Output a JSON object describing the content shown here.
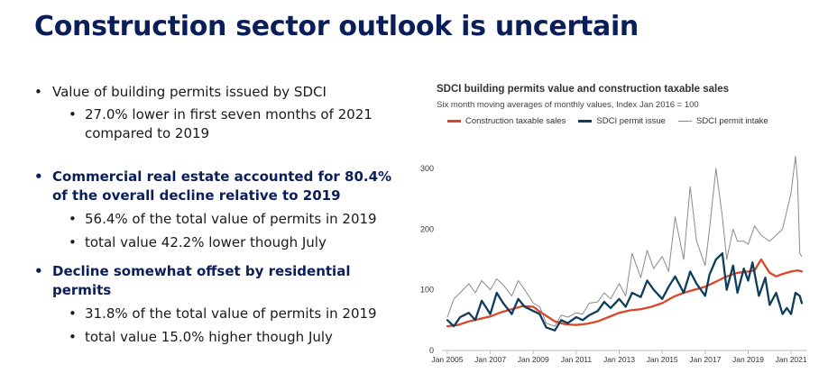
{
  "slide": {
    "title": "Construction sector outlook is uncertain",
    "bullets": [
      {
        "text": "Value of building permits issued by SDCI"
      },
      {
        "text": "27.0% lower in first seven months of 2021 compared to 2019"
      },
      {
        "text": "Commercial real estate accounted for 80.4% of the overall decline relative to 2019"
      },
      {
        "text": "56.4% of the total value of permits in 2019"
      },
      {
        "text": "total value 42.2% lower though July"
      },
      {
        "text": "Decline somewhat offset by residential permits"
      },
      {
        "text": "31.8% of the total value of permits in 2019"
      },
      {
        "text": "total value 15.0% higher though July"
      }
    ]
  },
  "colors": {
    "title": "#0a1e5a",
    "construction": "#d9472b",
    "permit_issue": "#0f3d5c",
    "permit_intake": "#8a8a8a",
    "axis": "#bbbbbb"
  },
  "chart_data": {
    "type": "line",
    "title": "SDCI building permits value and construction taxable sales",
    "subtitle": "Six month moving averages of monthly values, Index Jan 2016 = 100",
    "legend_position": "top",
    "xlim": [
      2004.75,
      2021.75
    ],
    "ylim": [
      0,
      340
    ],
    "yticks": [
      0,
      100,
      200,
      300
    ],
    "xticks": [
      {
        "x": 2005,
        "label": "Jan 2005"
      },
      {
        "x": 2007,
        "label": "Jan 2007"
      },
      {
        "x": 2009,
        "label": "Jan 2009"
      },
      {
        "x": 2011,
        "label": "Jan 2011"
      },
      {
        "x": 2013,
        "label": "Jan 2013"
      },
      {
        "x": 2015,
        "label": "Jan 2015"
      },
      {
        "x": 2017,
        "label": "Jan 2017"
      },
      {
        "x": 2019,
        "label": "Jan 2019"
      },
      {
        "x": 2021,
        "label": "Jan 2021"
      }
    ],
    "series": [
      {
        "name": "Construction taxable sales",
        "color": "#d9472b",
        "width": 2.3,
        "x": [
          2005.0,
          2005.5,
          2006.0,
          2006.5,
          2007.0,
          2007.5,
          2008.0,
          2008.5,
          2009.0,
          2009.3,
          2009.7,
          2010.0,
          2010.5,
          2011.0,
          2011.5,
          2012.0,
          2012.5,
          2013.0,
          2013.5,
          2014.0,
          2014.5,
          2015.0,
          2015.5,
          2016.0,
          2016.5,
          2017.0,
          2017.3,
          2017.6,
          2018.0,
          2018.5,
          2019.0,
          2019.3,
          2019.6,
          2020.0,
          2020.3,
          2020.6,
          2021.0,
          2021.3,
          2021.5
        ],
        "y": [
          40,
          42,
          48,
          52,
          56,
          63,
          68,
          73,
          72,
          64,
          55,
          48,
          43,
          42,
          44,
          48,
          55,
          62,
          66,
          68,
          72,
          78,
          88,
          95,
          100,
          105,
          110,
          115,
          122,
          128,
          130,
          132,
          150,
          128,
          122,
          126,
          130,
          132,
          130
        ]
      },
      {
        "name": "SDCI permit issue",
        "color": "#0f3d5c",
        "width": 2.3,
        "x": [
          2005.0,
          2005.3,
          2005.6,
          2006.0,
          2006.3,
          2006.6,
          2007.0,
          2007.3,
          2007.6,
          2008.0,
          2008.3,
          2008.6,
          2009.0,
          2009.3,
          2009.6,
          2010.0,
          2010.3,
          2010.6,
          2011.0,
          2011.3,
          2011.6,
          2012.0,
          2012.3,
          2012.6,
          2013.0,
          2013.3,
          2013.6,
          2014.0,
          2014.3,
          2014.6,
          2015.0,
          2015.3,
          2015.6,
          2016.0,
          2016.3,
          2016.6,
          2017.0,
          2017.2,
          2017.5,
          2017.8,
          2018.0,
          2018.3,
          2018.5,
          2018.8,
          2019.0,
          2019.2,
          2019.5,
          2019.8,
          2020.0,
          2020.3,
          2020.6,
          2020.8,
          2021.0,
          2021.2,
          2021.4,
          2021.5
        ],
        "y": [
          50,
          40,
          55,
          62,
          50,
          82,
          60,
          95,
          78,
          60,
          85,
          72,
          65,
          60,
          38,
          33,
          50,
          45,
          55,
          50,
          58,
          65,
          80,
          70,
          85,
          72,
          95,
          88,
          115,
          100,
          85,
          105,
          122,
          95,
          130,
          110,
          90,
          125,
          150,
          160,
          100,
          140,
          95,
          135,
          115,
          145,
          90,
          120,
          75,
          95,
          60,
          70,
          60,
          95,
          90,
          78
        ]
      },
      {
        "name": "SDCI permit intake",
        "color": "#8a8a8a",
        "width": 1,
        "x": [
          2005.0,
          2005.3,
          2005.6,
          2006.0,
          2006.3,
          2006.6,
          2007.0,
          2007.3,
          2007.6,
          2008.0,
          2008.3,
          2008.6,
          2009.0,
          2009.3,
          2009.6,
          2010.0,
          2010.3,
          2010.6,
          2011.0,
          2011.3,
          2011.6,
          2012.0,
          2012.3,
          2012.6,
          2013.0,
          2013.3,
          2013.6,
          2014.0,
          2014.3,
          2014.6,
          2015.0,
          2015.3,
          2015.6,
          2016.0,
          2016.3,
          2016.6,
          2017.0,
          2017.2,
          2017.5,
          2017.8,
          2018.0,
          2018.3,
          2018.5,
          2018.8,
          2019.0,
          2019.3,
          2019.6,
          2020.0,
          2020.3,
          2020.6,
          2021.0,
          2021.2,
          2021.3,
          2021.4,
          2021.5
        ],
        "y": [
          55,
          85,
          95,
          110,
          95,
          115,
          100,
          118,
          108,
          90,
          115,
          100,
          78,
          72,
          45,
          40,
          58,
          55,
          62,
          60,
          78,
          80,
          95,
          85,
          110,
          90,
          160,
          120,
          165,
          135,
          155,
          130,
          220,
          150,
          270,
          180,
          140,
          200,
          300,
          220,
          150,
          200,
          180,
          180,
          175,
          205,
          190,
          180,
          190,
          200,
          260,
          320,
          280,
          160,
          155
        ]
      }
    ]
  }
}
